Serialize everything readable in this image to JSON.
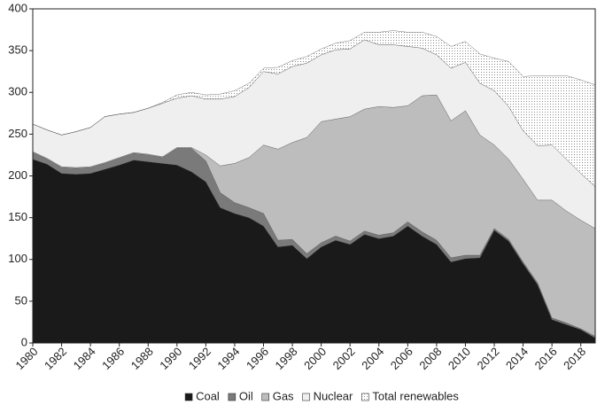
{
  "chart_data": {
    "type": "stacked_area",
    "x": [
      1980,
      1981,
      1982,
      1983,
      1984,
      1985,
      1986,
      1987,
      1988,
      1989,
      1990,
      1991,
      1992,
      1993,
      1994,
      1995,
      1996,
      1997,
      1998,
      1999,
      2000,
      2001,
      2002,
      2003,
      2004,
      2005,
      2006,
      2007,
      2008,
      2009,
      2010,
      2011,
      2012,
      2013,
      2014,
      2015,
      2016,
      2017,
      2018,
      2019
    ],
    "xlim": [
      1980,
      2019
    ],
    "xticks": [
      1980,
      1982,
      1984,
      1986,
      1988,
      1990,
      1992,
      1994,
      1996,
      1998,
      2000,
      2002,
      2004,
      2006,
      2008,
      2010,
      2012,
      2014,
      2016,
      2018
    ],
    "ylim": [
      0,
      400
    ],
    "yticks": [
      0,
      50,
      100,
      150,
      200,
      250,
      300,
      350,
      400
    ],
    "legend": "bottom",
    "series": [
      {
        "name": "Coal",
        "color": "#1a1a1a",
        "values": [
          220,
          214,
          203,
          202,
          203,
          208,
          213,
          219,
          217,
          215,
          213,
          205,
          193,
          162,
          155,
          150,
          140,
          115,
          117,
          101,
          115,
          123,
          118,
          130,
          125,
          128,
          140,
          128,
          118,
          97,
          101,
          102,
          135,
          122,
          95,
          70,
          28,
          22,
          16,
          6
        ]
      },
      {
        "name": "Oil",
        "color": "#7a7a7a",
        "values": [
          8,
          6,
          7,
          7,
          7,
          7,
          8,
          8,
          8,
          7,
          20,
          28,
          25,
          18,
          13,
          12,
          15,
          8,
          7,
          6,
          5,
          5,
          4,
          4,
          4,
          4,
          5,
          5,
          5,
          5,
          4,
          3,
          2,
          2,
          2,
          2,
          2,
          2,
          1,
          2
        ]
      },
      {
        "name": "Gas",
        "color": "#bdbdbd",
        "values": [
          1,
          1,
          1,
          1,
          1,
          1,
          1,
          1,
          1,
          1,
          1,
          1,
          7,
          32,
          47,
          60,
          82,
          109,
          116,
          139,
          145,
          140,
          149,
          146,
          154,
          150,
          139,
          163,
          174,
          164,
          173,
          144,
          100,
          96,
          99,
          99,
          141,
          134,
          130,
          129
        ]
      },
      {
        "name": "Nuclear",
        "color": "#efefef",
        "values": [
          33,
          34,
          38,
          43,
          47,
          55,
          52,
          48,
          55,
          64,
          59,
          62,
          67,
          80,
          80,
          84,
          88,
          90,
          91,
          89,
          80,
          83,
          81,
          83,
          74,
          75,
          71,
          57,
          48,
          63,
          58,
          62,
          65,
          63,
          58,
          65,
          66,
          62,
          56,
          50
        ]
      },
      {
        "name": "Total renewables",
        "color": "#8a8a8a",
        "pattern": "dots",
        "values": [
          0,
          0,
          0,
          0,
          0,
          0,
          0,
          0,
          0,
          1,
          4,
          4,
          5,
          6,
          7,
          5,
          4,
          8,
          7,
          8,
          7,
          8,
          10,
          9,
          15,
          17,
          17,
          19,
          22,
          26,
          25,
          35,
          39,
          54,
          65,
          84,
          83,
          100,
          112,
          122
        ]
      }
    ]
  }
}
